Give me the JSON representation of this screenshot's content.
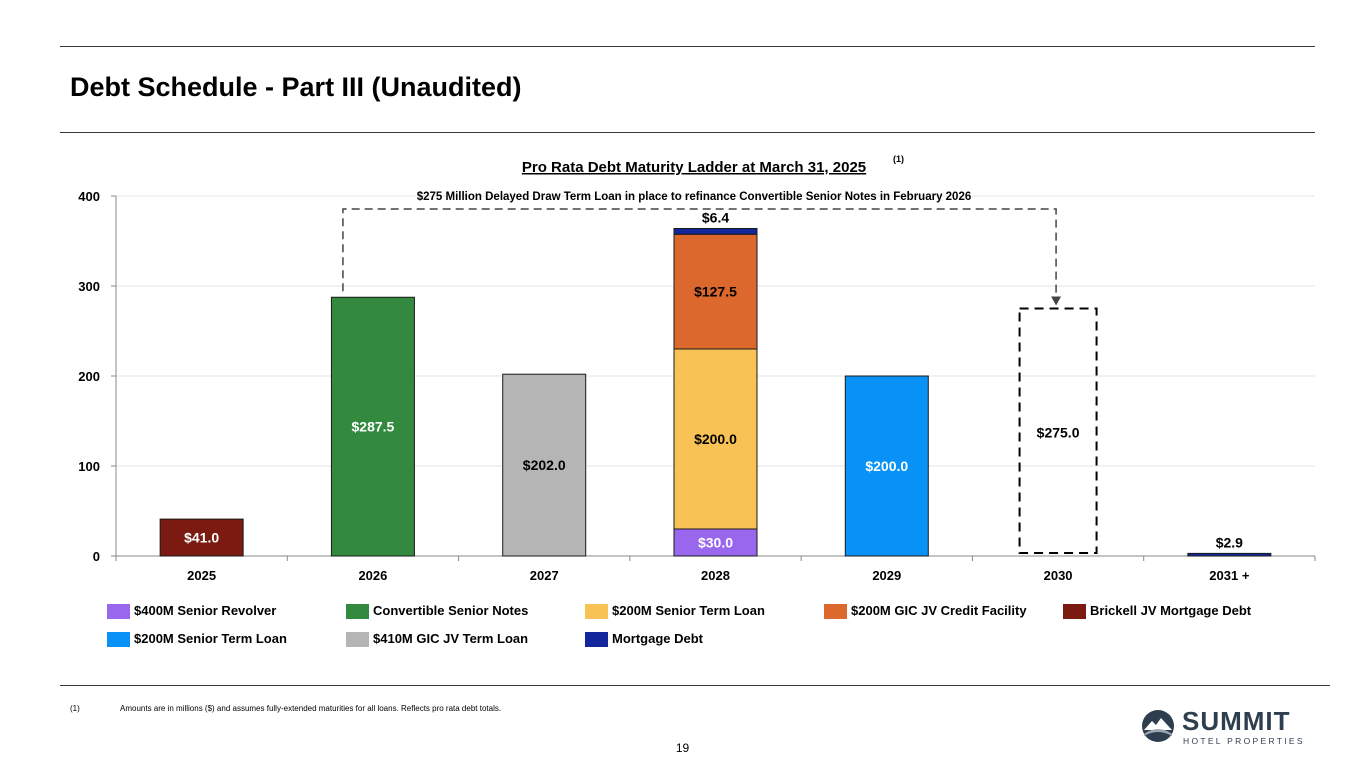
{
  "slide": {
    "title": "Debt Schedule - Part III (Unaudited)",
    "footnote_marker": "(1)",
    "footnote_text": "Amounts are in millions ($) and assumes fully-extended maturities for all loans. Reflects pro rata debt totals.",
    "page_number": "19"
  },
  "logo": {
    "name": "SUMMIT",
    "tagline": "HOTEL PROPERTIES",
    "icon": "mountain-logo-icon"
  },
  "chart_data": {
    "type": "bar",
    "stacked": true,
    "title": "Pro Rata Debt Maturity Ladder at March 31, 2025",
    "title_superscript": "(1)",
    "annotation": "$275 Million Delayed Draw Term Loan in place to refinance Convertible Senior Notes in February 2026",
    "categories": [
      "2025",
      "2026",
      "2027",
      "2028",
      "2029",
      "2030",
      "2031 +"
    ],
    "ylim": [
      0,
      400
    ],
    "yticks": [
      "0",
      "100",
      "200",
      "300",
      "400"
    ],
    "grid": true,
    "legend_position": "bottom",
    "series": [
      {
        "name": "$400M Senior Revolver",
        "color": "#9966ee",
        "values": [
          0,
          0,
          0,
          30.0,
          0,
          0,
          0
        ],
        "labels": [
          "",
          "",
          "",
          "$30.0",
          "",
          "",
          ""
        ],
        "label_color": "#ffffff"
      },
      {
        "name": "Convertible Senior Notes",
        "color": "#338a3e",
        "values": [
          0,
          287.5,
          0,
          0,
          0,
          0,
          0
        ],
        "labels": [
          "",
          "$287.5",
          "",
          "",
          "",
          "",
          ""
        ],
        "label_color": "#ffffff"
      },
      {
        "name": "$200M Senior Term Loan",
        "color": "#f9c255",
        "values": [
          0,
          0,
          0,
          200.0,
          0,
          0,
          0
        ],
        "labels": [
          "",
          "",
          "",
          "$200.0",
          "",
          "",
          ""
        ],
        "label_color": "#000000"
      },
      {
        "name": "$200M GIC JV Credit Facility",
        "color": "#dd682e",
        "values": [
          0,
          0,
          0,
          127.5,
          0,
          0,
          0
        ],
        "labels": [
          "",
          "",
          "",
          "$127.5",
          "",
          "",
          ""
        ],
        "label_color": "#000000"
      },
      {
        "name": "Brickell JV Mortgage Debt",
        "color": "#7a1a10",
        "values": [
          41.0,
          0,
          0,
          0,
          0,
          0,
          0
        ],
        "labels": [
          "$41.0",
          "",
          "",
          "",
          "",
          "",
          ""
        ],
        "label_color": "#ffffff"
      },
      {
        "name": "$200M Senior Term Loan",
        "color": "#0892f5",
        "values": [
          0,
          0,
          0,
          0,
          200.0,
          0,
          0
        ],
        "labels": [
          "",
          "",
          "",
          "",
          "$200.0",
          "",
          ""
        ],
        "label_color": "#ffffff"
      },
      {
        "name": "$410M GIC JV Term Loan",
        "color": "#b5b5b5",
        "values": [
          0,
          0,
          202.0,
          0,
          0,
          0,
          0
        ],
        "labels": [
          "",
          "",
          "$202.0",
          "",
          "",
          "",
          ""
        ],
        "label_color": "#000000"
      },
      {
        "name": "Mortgage Debt",
        "color": "#14269c",
        "values": [
          0,
          0,
          0,
          6.4,
          0,
          0,
          2.9
        ],
        "labels": [
          "",
          "",
          "",
          "$6.4",
          "",
          "",
          "$2.9"
        ],
        "label_color": "#000000",
        "label_position": "above"
      }
    ],
    "dashed_bars": [
      {
        "category": "2030",
        "value": 275.0,
        "label": "$275.0"
      }
    ],
    "legend_rows": [
      [
        0,
        1,
        2,
        3,
        4
      ],
      [
        5,
        6,
        7
      ]
    ]
  }
}
